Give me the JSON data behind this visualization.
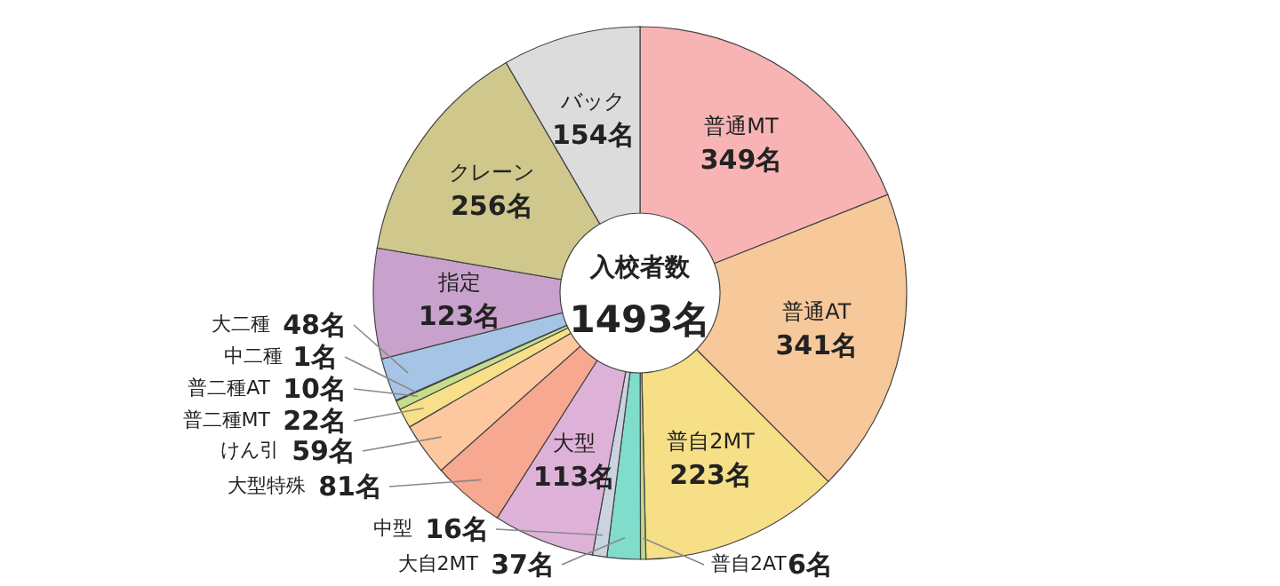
{
  "chart_data": {
    "type": "donut",
    "categories": [
      "普通MT",
      "普通AT",
      "普自2MT",
      "普自2AT",
      "大自2MT",
      "中型",
      "大型",
      "大型特殊",
      "けん引",
      "普二種MT",
      "普二種AT",
      "中二種",
      "大二種",
      "指定",
      "クレーン",
      "バック"
    ],
    "values": [
      349,
      341,
      223,
      6,
      37,
      16,
      113,
      81,
      59,
      22,
      10,
      1,
      48,
      123,
      256,
      154
    ],
    "colors": [
      "#f8b4b4",
      "#f7c99a",
      "#f7df88",
      "#b9d98c",
      "#80dccb",
      "#cbd3e0",
      "#deb2d8",
      "#f7a890",
      "#fdc8a0",
      "#f8e08a",
      "#c6dd8c",
      "#8fd9d0",
      "#a6c4e6",
      "#c8a2cc",
      "#cfc78c",
      "#dcdcdc"
    ],
    "value_labels": [
      "349名",
      "341名",
      "223名",
      "6名",
      "37名",
      "16名",
      "113名",
      "81名",
      "59名",
      "22名",
      "10名",
      "1名",
      "48名",
      "123名",
      "256名",
      "154名"
    ],
    "annotations": [
      "入校者数",
      "1493名"
    ]
  }
}
